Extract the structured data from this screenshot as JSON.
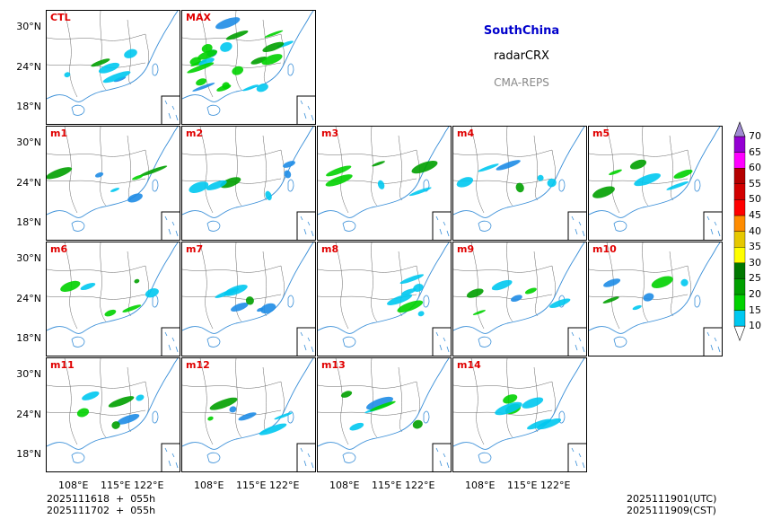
{
  "header": {
    "region": "SouthChina",
    "variable": "radarCRX",
    "model": "CMA-REPS",
    "region_color": "#0000cc",
    "model_color": "#888888"
  },
  "panels": [
    {
      "label": "CTL",
      "row": 0,
      "col": 0
    },
    {
      "label": "MAX",
      "row": 0,
      "col": 1
    },
    {
      "label": "m1",
      "row": 1,
      "col": 0
    },
    {
      "label": "m2",
      "row": 1,
      "col": 1
    },
    {
      "label": "m3",
      "row": 1,
      "col": 2
    },
    {
      "label": "m4",
      "row": 1,
      "col": 3
    },
    {
      "label": "m5",
      "row": 1,
      "col": 4
    },
    {
      "label": "m6",
      "row": 2,
      "col": 0
    },
    {
      "label": "m7",
      "row": 2,
      "col": 1
    },
    {
      "label": "m8",
      "row": 2,
      "col": 2
    },
    {
      "label": "m9",
      "row": 2,
      "col": 3
    },
    {
      "label": "m10",
      "row": 2,
      "col": 4
    },
    {
      "label": "m11",
      "row": 3,
      "col": 0
    },
    {
      "label": "m12",
      "row": 3,
      "col": 1
    },
    {
      "label": "m13",
      "row": 3,
      "col": 2
    },
    {
      "label": "m14",
      "row": 3,
      "col": 3
    }
  ],
  "axes": {
    "lat_labels": [
      "30°N",
      "24°N",
      "18°N"
    ],
    "lon_labels": [
      "108°E",
      "115°E",
      "122°E"
    ]
  },
  "colorbar": {
    "levels": [
      "10",
      "15",
      "20",
      "25",
      "30",
      "35",
      "40",
      "45",
      "50",
      "55",
      "60",
      "65",
      "70"
    ],
    "colors": [
      "#1e8ce6",
      "#00c8f0",
      "#00d200",
      "#00a000",
      "#007800",
      "#ffff00",
      "#e6c800",
      "#ff8c00",
      "#ff0000",
      "#d20000",
      "#b40000",
      "#ff00ff",
      "#9400d3",
      "#a08cd2"
    ]
  },
  "footer": {
    "init_line1": "2025111618  +  055h",
    "init_line2": "2025111702  +  055h",
    "valid_utc": "2025111901(UTC)",
    "valid_cst": "2025111909(CST)"
  }
}
